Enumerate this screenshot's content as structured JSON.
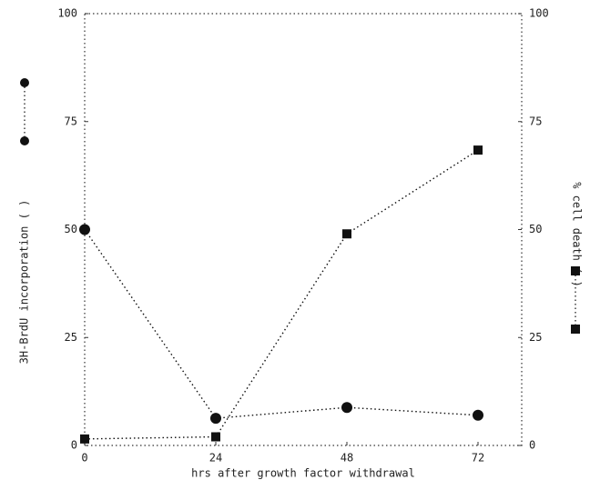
{
  "chart_data": {
    "type": "line",
    "xlabel": "hrs after growth factor withdrawal",
    "ylabel": "3H-BrdU incorporation (   )",
    "y2label": "% cell death (   )",
    "x": [
      0,
      24,
      48,
      72
    ],
    "xlim": [
      0,
      80
    ],
    "xticks": [
      0,
      24,
      48,
      72
    ],
    "ylim": [
      0,
      100
    ],
    "yticks": [
      0,
      25,
      50,
      75,
      100
    ],
    "y2lim": [
      0,
      100
    ],
    "y2ticks": [
      0,
      25,
      50,
      75,
      100
    ],
    "series": [
      {
        "color": "#111111",
        "marker": "circle",
        "values": [
          50,
          6.3,
          8.8,
          7
        ]
      },
      {
        "color": "#111111",
        "marker": "square",
        "axis": "y2",
        "values": [
          1.5,
          2,
          49,
          68.4
        ]
      }
    ]
  }
}
